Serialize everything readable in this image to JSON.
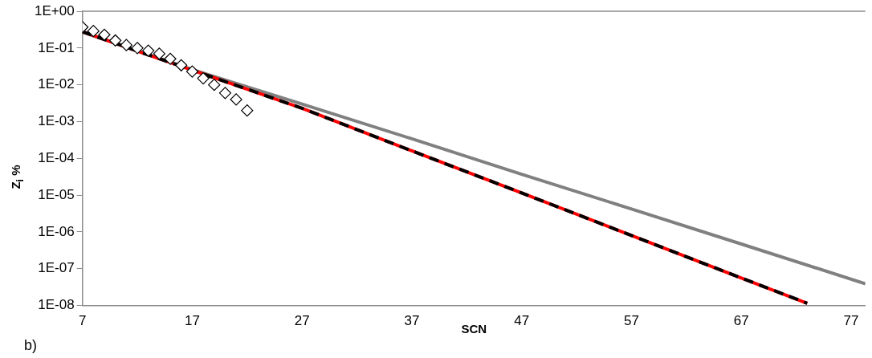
{
  "chart_data": {
    "type": "scatter",
    "xlabel": "SCN",
    "ylabel": "Z$_{i}$ %",
    "annotations": [
      "b)"
    ],
    "log": "y",
    "grid": false,
    "legend": false,
    "xlim": [
      7,
      78.3
    ],
    "xticks": [
      7,
      17,
      27,
      37,
      47,
      57,
      67,
      77
    ],
    "ylim": [
      1e-08,
      1
    ],
    "yticks": [
      {
        "value": 1,
        "label": "1E+00"
      },
      {
        "value": 0.1,
        "label": "1E-01"
      },
      {
        "value": 0.01,
        "label": "1E-02"
      },
      {
        "value": 0.001,
        "label": "1E-03"
      },
      {
        "value": 0.0001,
        "label": "1E-04"
      },
      {
        "value": 1e-05,
        "label": "1E-05"
      },
      {
        "value": 1e-06,
        "label": "1E-06"
      },
      {
        "value": 1e-07,
        "label": "1E-07"
      },
      {
        "value": 1e-08,
        "label": "1E-08"
      }
    ],
    "series": [
      {
        "type": "line",
        "color": "#808080",
        "line_style": "solid",
        "marker": "none",
        "x": [
          7,
          17,
          27,
          37,
          47,
          57,
          67,
          78.3
        ],
        "values": [
          0.27,
          0.026,
          0.003,
          0.00034,
          3.7e-05,
          4.2e-06,
          4.7e-07,
          3.9e-08
        ]
      },
      {
        "type": "line",
        "color": "#ff0000",
        "line_style": "solid",
        "marker": "none",
        "x": [
          7,
          12,
          17,
          22,
          27,
          37,
          47,
          57,
          67,
          73
        ],
        "values": [
          0.28,
          0.083,
          0.025,
          0.0076,
          0.0023,
          0.00016,
          1.15e-05,
          8e-07,
          5.6e-08,
          1.15e-08
        ]
      },
      {
        "type": "line",
        "color": "#000000",
        "line_style": "dashed",
        "marker": "none",
        "x": [
          7,
          12,
          17,
          22,
          27,
          37,
          47,
          57,
          67,
          73
        ],
        "values": [
          0.28,
          0.083,
          0.025,
          0.0076,
          0.0023,
          0.00016,
          1.15e-05,
          8e-07,
          5.6e-08,
          1.15e-08
        ]
      },
      {
        "type": "scatter",
        "color": "#000000",
        "marker": "diamond",
        "x": [
          7,
          8,
          9,
          10,
          11,
          12,
          13,
          14,
          15,
          16,
          17,
          18,
          19,
          20,
          21,
          22
        ],
        "values": [
          0.37,
          0.29,
          0.23,
          0.16,
          0.12,
          0.1,
          0.085,
          0.07,
          0.051,
          0.034,
          0.023,
          0.015,
          0.01,
          0.006,
          0.004,
          0.002
        ]
      }
    ]
  }
}
